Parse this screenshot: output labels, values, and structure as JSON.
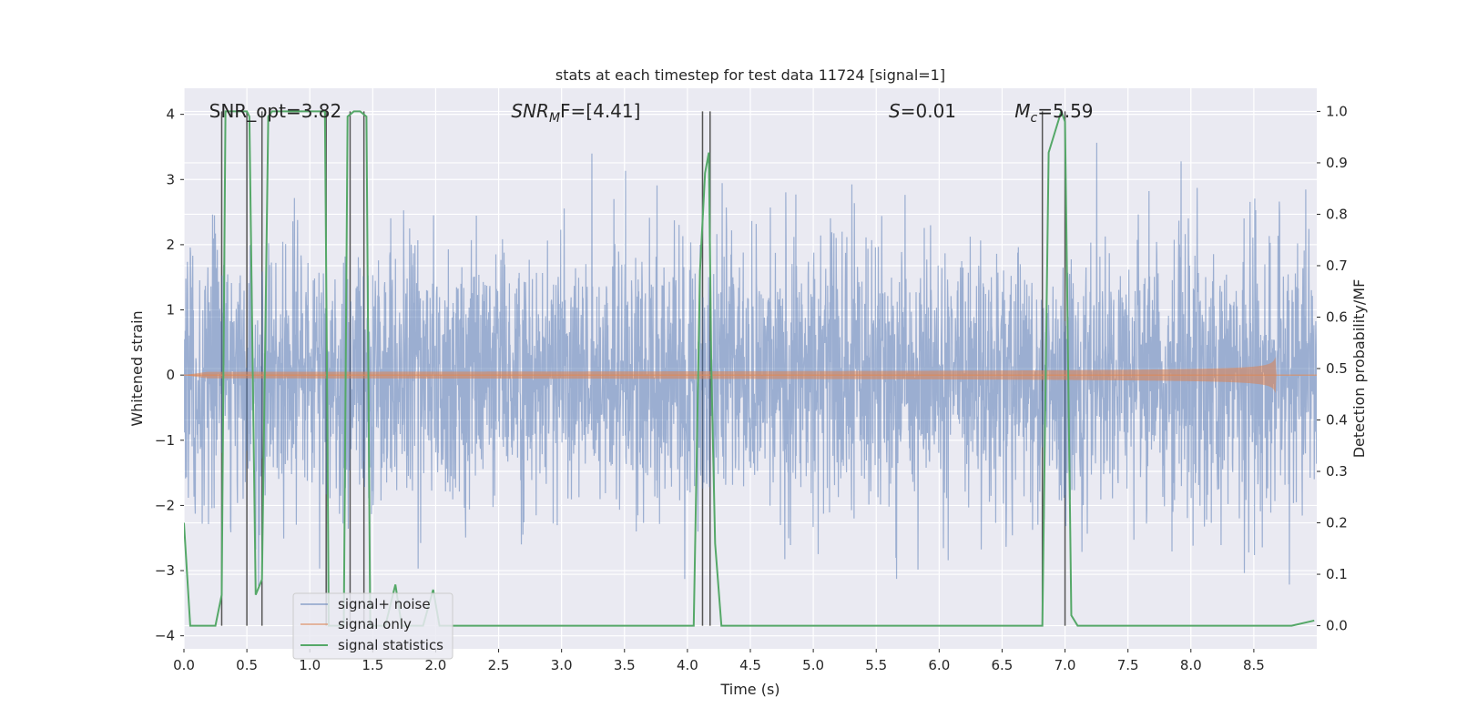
{
  "chart_data": {
    "type": "line",
    "title": "stats at each timestep for test data 11724 [signal=1]",
    "xlabel": "Time (s)",
    "ylabel": "Whitened strain",
    "y2label": "Detection probability/MF",
    "xlim": [
      0,
      9
    ],
    "ylim": [
      -4.2,
      4.4
    ],
    "y2lim": [
      -0.045,
      1.045
    ],
    "x_ticks": [
      0.0,
      0.5,
      1.0,
      1.5,
      2.0,
      2.5,
      3.0,
      3.5,
      4.0,
      4.5,
      5.0,
      5.5,
      6.0,
      6.5,
      7.0,
      7.5,
      8.0,
      8.5
    ],
    "x_tick_labels": [
      "0.0",
      "0.5",
      "1.0",
      "1.5",
      "2.0",
      "2.5",
      "3.0",
      "3.5",
      "4.0",
      "4.5",
      "5.0",
      "5.5",
      "6.0",
      "6.5",
      "7.0",
      "7.5",
      "8.0",
      "8.5"
    ],
    "y_ticks": [
      4,
      3,
      2,
      1,
      0,
      -1,
      -2,
      -3,
      -4
    ],
    "y_tick_labels": [
      "4",
      "3",
      "2",
      "1",
      "0",
      "−1",
      "−2",
      "−3",
      "−4"
    ],
    "y2_ticks": [
      1.0,
      0.9,
      0.8,
      0.7,
      0.6,
      0.5,
      0.4,
      0.3,
      0.2,
      0.1,
      0.0
    ],
    "y2_tick_labels": [
      "1.0",
      "0.9",
      "0.8",
      "0.7",
      "0.6",
      "0.5",
      "0.4",
      "0.3",
      "0.2",
      "0.1",
      "0.0"
    ],
    "grid": true,
    "legend_position": "lower-left",
    "annotations": [
      {
        "id": "snr-opt",
        "text": "SNR_opt=3.82",
        "x": 0.2,
        "y": 4.05
      },
      {
        "id": "snr-mf",
        "base": "SNR",
        "sub": "M",
        "rest": "F=[4.41]",
        "x": 2.6,
        "y": 4.05
      },
      {
        "id": "s-stat",
        "base": "S",
        "rest": "=0.01",
        "x": 5.6,
        "y": 4.05
      },
      {
        "id": "mchirp",
        "base": "M",
        "sub": "c",
        "rest": "=5.59",
        "x": 6.6,
        "y": 4.05
      }
    ],
    "vlines": [
      0.3,
      0.5,
      0.62,
      1.13,
      1.32,
      1.43,
      4.12,
      4.18,
      6.82,
      7.0
    ],
    "series": [
      {
        "name": "signal+ noise",
        "color": "#4c72b0",
        "axis": "left",
        "kind": "noise",
        "duration": 9,
        "amplitude_std": 1.0
      },
      {
        "name": "signal only",
        "color": "#dd8452",
        "axis": "left",
        "kind": "chirp",
        "start": 0.0,
        "merger": 8.68,
        "peak_amplitude": 0.52
      },
      {
        "name": "signal statistics",
        "color": "#55a868",
        "axis": "right",
        "kind": "line",
        "x": [
          0.0,
          0.05,
          0.25,
          0.3,
          0.33,
          0.37,
          0.5,
          0.52,
          0.57,
          0.62,
          0.67,
          0.7,
          1.0,
          1.12,
          1.14,
          1.15,
          1.2,
          1.27,
          1.3,
          1.35,
          1.4,
          1.45,
          1.48,
          1.53,
          1.6,
          1.68,
          1.73,
          1.9,
          1.98,
          2.03,
          2.1,
          2.5,
          2.6,
          4.0,
          4.05,
          4.1,
          4.14,
          4.17,
          4.19,
          4.22,
          4.27,
          4.32,
          4.5,
          6.82,
          6.87,
          6.97,
          7.0,
          7.05,
          7.1,
          7.3,
          8.8,
          8.98
        ],
        "y": [
          0.2,
          0.0,
          0.0,
          0.06,
          1.0,
          1.0,
          1.0,
          0.99,
          0.06,
          0.09,
          0.99,
          1.0,
          1.0,
          1.0,
          0.38,
          0.0,
          0.0,
          0.0,
          0.99,
          1.0,
          1.0,
          0.99,
          0.0,
          0.0,
          0.0,
          0.08,
          0.0,
          0.0,
          0.07,
          0.0,
          0.0,
          0.0,
          0.0,
          0.0,
          0.0,
          0.69,
          0.88,
          0.92,
          0.5,
          0.16,
          0.0,
          0.0,
          0.0,
          0.0,
          0.92,
          1.0,
          0.98,
          0.02,
          0.0,
          0.0,
          0.0,
          0.01
        ]
      }
    ]
  }
}
